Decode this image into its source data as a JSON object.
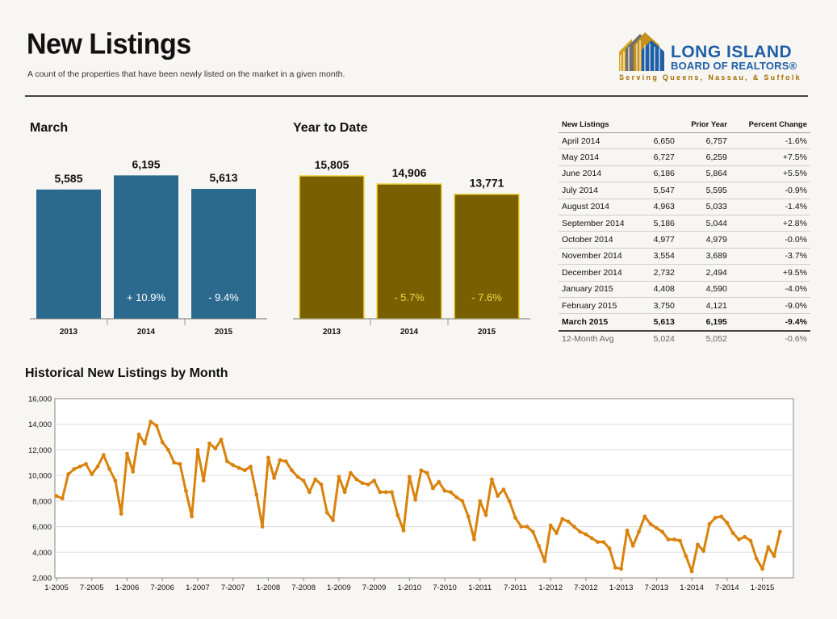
{
  "header": {
    "title": "New Listings",
    "subtitle": "A count of the properties that have been newly listed on the market in a given month."
  },
  "logo": {
    "line1": "LONG ISLAND",
    "line2": "BOARD OF REALTORS®",
    "line3": "Serving Queens, Nassau, & Suffolk"
  },
  "colors": {
    "march_bar": "#2b6a8e",
    "ytd_bar": "#7a5f00",
    "ytd_bar_outline": "#f2d840",
    "line": "#d9820c"
  },
  "summary_table": {
    "headers": [
      "New Listings",
      "",
      "Prior Year",
      "Percent Change"
    ],
    "rows": [
      [
        "April 2014",
        "6,650",
        "6,757",
        "-1.6%"
      ],
      [
        "May 2014",
        "6,727",
        "6,259",
        "+7.5%"
      ],
      [
        "June 2014",
        "6,186",
        "5,864",
        "+5.5%"
      ],
      [
        "July 2014",
        "5,547",
        "5,595",
        "-0.9%"
      ],
      [
        "August 2014",
        "4,963",
        "5,033",
        "-1.4%"
      ],
      [
        "September 2014",
        "5,186",
        "5,044",
        "+2.8%"
      ],
      [
        "October 2014",
        "4,977",
        "4,979",
        "-0.0%"
      ],
      [
        "November 2014",
        "3,554",
        "3,689",
        "-3.7%"
      ],
      [
        "December 2014",
        "2,732",
        "2,494",
        "+9.5%"
      ],
      [
        "January 2015",
        "4,408",
        "4,590",
        "-4.0%"
      ],
      [
        "February 2015",
        "3,750",
        "4,121",
        "-9.0%"
      ],
      [
        "March 2015",
        "5,613",
        "6,195",
        "-9.4%"
      ]
    ],
    "avg_row": [
      "12-Month Avg",
      "5,024",
      "5,052",
      "-0.6%"
    ]
  },
  "chart_data": [
    {
      "type": "bar",
      "title": "March",
      "categories": [
        "2013",
        "2014",
        "2015"
      ],
      "values": [
        5585,
        6195,
        5613
      ],
      "value_labels": [
        "5,585",
        "6,195",
        "5,613"
      ],
      "change_labels": [
        "",
        "+ 10.9%",
        "- 9.4%"
      ],
      "ylim": [
        0,
        6800
      ]
    },
    {
      "type": "bar",
      "title": "Year to Date",
      "categories": [
        "2013",
        "2014",
        "2015"
      ],
      "values": [
        15805,
        14906,
        13771
      ],
      "value_labels": [
        "15,805",
        "14,906",
        "13,771"
      ],
      "change_labels": [
        "",
        "- 5.7%",
        "- 7.6%"
      ],
      "ylim": [
        0,
        17400
      ]
    },
    {
      "type": "line",
      "title": "Historical New Listings by Month",
      "x_start": "2005-01",
      "x_ticks": [
        "1-2005",
        "7-2005",
        "1-2006",
        "7-2006",
        "1-2007",
        "7-2007",
        "1-2008",
        "7-2008",
        "1-2009",
        "7-2009",
        "1-2010",
        "7-2010",
        "1-2011",
        "7-2011",
        "1-2012",
        "7-2012",
        "1-2013",
        "7-2013",
        "1-2014",
        "7-2014",
        "1-2015"
      ],
      "y_ticks": [
        "2,000",
        "4,000",
        "6,000",
        "8,000",
        "10,000",
        "12,000",
        "14,000",
        "16,000"
      ],
      "ylim": [
        2000,
        16000
      ],
      "values": [
        8400,
        8200,
        10100,
        10500,
        10700,
        10900,
        10100,
        10700,
        11600,
        10500,
        9600,
        7000,
        11700,
        10300,
        13200,
        12500,
        14200,
        13900,
        12600,
        12000,
        11000,
        10900,
        8800,
        6800,
        12000,
        9600,
        12500,
        12100,
        12800,
        11100,
        10800,
        10600,
        10400,
        10700,
        8500,
        6000,
        11400,
        9800,
        11200,
        11100,
        10400,
        9900,
        9600,
        8700,
        9700,
        9300,
        7100,
        6500,
        9900,
        8700,
        10200,
        9700,
        9400,
        9300,
        9600,
        8700,
        8700,
        8700,
        6900,
        5700,
        9900,
        8100,
        10400,
        10200,
        9000,
        9500,
        8800,
        8700,
        8300,
        8000,
        6800,
        5000,
        8000,
        6900,
        9700,
        8400,
        8900,
        8000,
        6700,
        6000,
        6000,
        5600,
        4500,
        3300,
        6100,
        5500,
        6600,
        6400,
        6000,
        5600,
        5400,
        5100,
        4800,
        4800,
        4300,
        2800,
        2700,
        5700,
        4500,
        5600,
        6800,
        6200,
        5900,
        5600,
        5000,
        5000,
        4900,
        3700,
        2500,
        4600,
        4100,
        6200,
        6700,
        6800,
        6300,
        5500,
        5000,
        5200,
        4900,
        3500,
        2700,
        4400,
        3700,
        5600
      ]
    }
  ]
}
